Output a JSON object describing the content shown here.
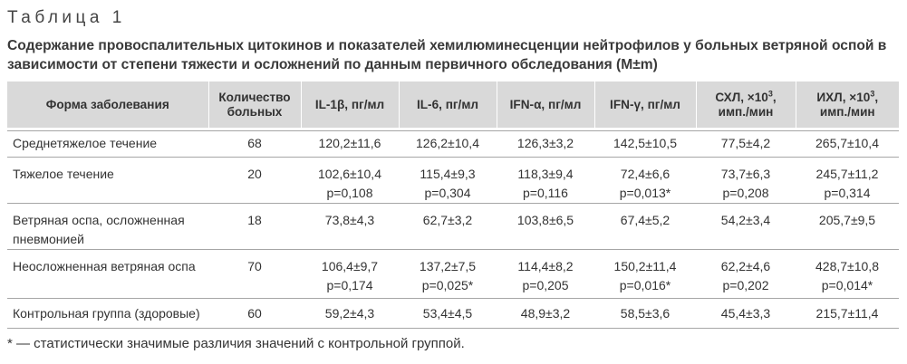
{
  "document": {
    "table_label": "Таблица 1",
    "caption": "Содержание провоспалительных цитокинов и показателей хемилюминесценции нейтрофилов у больных ветряной оспой в зависимости от степени тяжести и осложнений по данным первичного обследования (M±m)",
    "footnote": "* — статистически значимые различия значений с контрольной группой."
  },
  "table": {
    "headers": {
      "form": "Форма заболевания",
      "count_l1": "Количество",
      "count_l2": "больных",
      "il1b": "IL-1β, пг/мл",
      "il6": "IL-6, пг/мл",
      "ifna": "IFN-α, пг/мл",
      "ifng": "IFN-γ, пг/мл",
      "shl_l1": "СХЛ, ×10",
      "shl_sup": "3",
      "shl_comma": ",",
      "shl_l2": "имп./мин",
      "ihl_l1": "ИХЛ, ×10",
      "ihl_sup": "3",
      "ihl_comma": ",",
      "ihl_l2": "имп./мин"
    },
    "rows": [
      {
        "form": "Среднетяжелое течение",
        "form2": "",
        "count": "68",
        "il1b": "120,2±11,6",
        "il1b_p": "",
        "il6": "126,2±10,4",
        "il6_p": "",
        "ifna": "126,3±3,2",
        "ifna_p": "",
        "ifng": "142,5±10,5",
        "ifng_p": "",
        "shl": "77,5±4,2",
        "shl_p": "",
        "ihl": "265,7±10,4",
        "ihl_p": ""
      },
      {
        "form": "Тяжелое течение",
        "form2": "",
        "count": "20",
        "il1b": "102,6±10,4",
        "il1b_p": "p=0,108",
        "il6": "115,4±9,3",
        "il6_p": "p=0,304",
        "ifna": "118,3±9,4",
        "ifna_p": "p=0,116",
        "ifng": "72,4±6,6",
        "ifng_p": "p=0,013*",
        "shl": "73,7±6,3",
        "shl_p": "p=0,208",
        "ihl": "245,7±11,2",
        "ihl_p": "p=0,314"
      },
      {
        "form": "Ветряная оспа, осложненная",
        "form2": "пневмонией",
        "count": "18",
        "il1b": "73,8±4,3",
        "il1b_p": "",
        "il6": "62,7±3,2",
        "il6_p": "",
        "ifna": "103,8±6,5",
        "ifna_p": "",
        "ifng": "67,4±5,2",
        "ifng_p": "",
        "shl": "54,2±3,4",
        "shl_p": "",
        "ihl": "205,7±9,5",
        "ihl_p": ""
      },
      {
        "form": "Неосложненная ветряная оспа",
        "form2": "",
        "count": "70",
        "il1b": "106,4±9,7",
        "il1b_p": "p=0,174",
        "il6": "137,2±7,5",
        "il6_p": "p=0,025*",
        "ifna": "114,4±8,2",
        "ifna_p": "p=0,205",
        "ifng": "150,2±11,4",
        "ifng_p": "p=0,016*",
        "shl": "62,2±4,6",
        "shl_p": "p=0,202",
        "ihl": "428,7±10,8",
        "ihl_p": "p=0,014*"
      },
      {
        "form": "Контрольная группа (здоровые)",
        "form2": "",
        "count": "60",
        "il1b": "59,2±4,3",
        "il1b_p": "",
        "il6": "53,4±4,5",
        "il6_p": "",
        "ifna": "48,9±3,2",
        "ifna_p": "",
        "ifng": "58,5±3,6",
        "ifng_p": "",
        "shl": "45,4±3,3",
        "shl_p": "",
        "ihl": "215,7±11,4",
        "ihl_p": ""
      }
    ]
  }
}
